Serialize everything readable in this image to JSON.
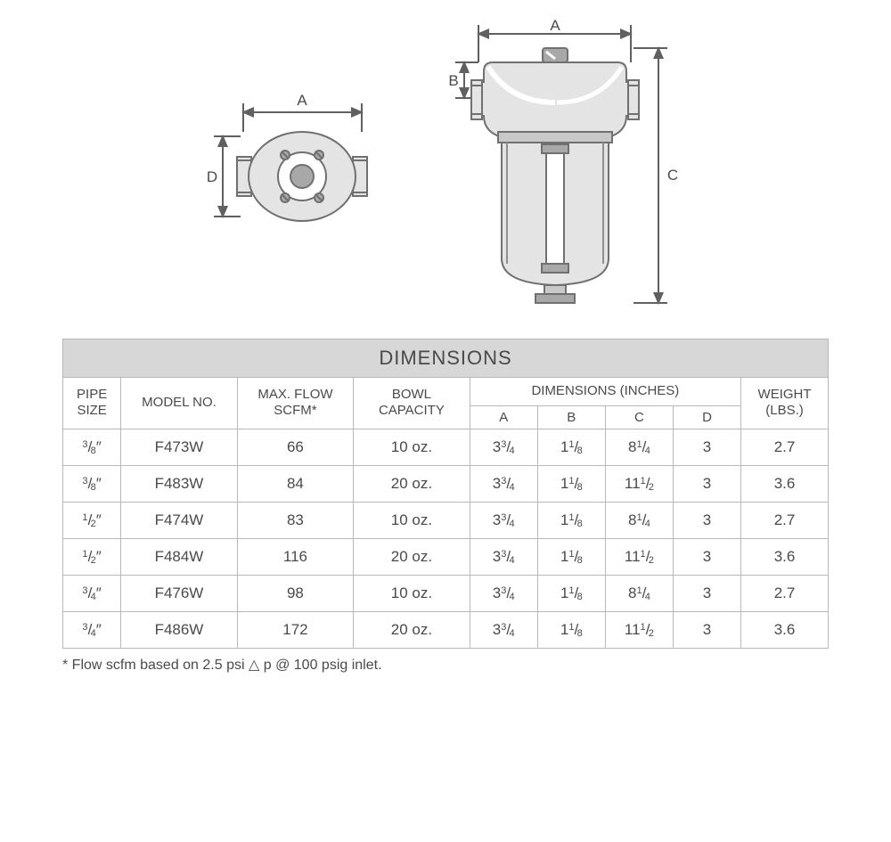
{
  "diagram": {
    "labels": {
      "A": "A",
      "B": "B",
      "C": "C",
      "D": "D"
    },
    "stroke": "#707070",
    "fill_body": "#e4e4e4",
    "fill_dark": "#a8a8a8",
    "fill_white": "#ffffff"
  },
  "table": {
    "title": "DIMENSIONS",
    "headers": {
      "pipe": "PIPE\nSIZE",
      "model": "MODEL NO.",
      "flow": "MAX. FLOW\nSCFM*",
      "bowl": "BOWL\nCAPACITY",
      "dims": "DIMENSIONS (INCHES)",
      "weight": "WEIGHT\n(LBS.)",
      "A": "A",
      "B": "B",
      "C": "C",
      "D": "D"
    },
    "rows": [
      {
        "pipe_num": "3",
        "pipe_den": "8",
        "model": "F473W",
        "flow": "66",
        "bowl": "10 oz.",
        "A_int": "3",
        "A_num": "3",
        "A_den": "4",
        "B_int": "1",
        "B_num": "1",
        "B_den": "8",
        "C_int": "8",
        "C_num": "1",
        "C_den": "4",
        "D": "3",
        "weight": "2.7"
      },
      {
        "pipe_num": "3",
        "pipe_den": "8",
        "model": "F483W",
        "flow": "84",
        "bowl": "20 oz.",
        "A_int": "3",
        "A_num": "3",
        "A_den": "4",
        "B_int": "1",
        "B_num": "1",
        "B_den": "8",
        "C_int": "11",
        "C_num": "1",
        "C_den": "2",
        "D": "3",
        "weight": "3.6"
      },
      {
        "pipe_num": "1",
        "pipe_den": "2",
        "model": "F474W",
        "flow": "83",
        "bowl": "10 oz.",
        "A_int": "3",
        "A_num": "3",
        "A_den": "4",
        "B_int": "1",
        "B_num": "1",
        "B_den": "8",
        "C_int": "8",
        "C_num": "1",
        "C_den": "4",
        "D": "3",
        "weight": "2.7"
      },
      {
        "pipe_num": "1",
        "pipe_den": "2",
        "model": "F484W",
        "flow": "116",
        "bowl": "20 oz.",
        "A_int": "3",
        "A_num": "3",
        "A_den": "4",
        "B_int": "1",
        "B_num": "1",
        "B_den": "8",
        "C_int": "11",
        "C_num": "1",
        "C_den": "2",
        "D": "3",
        "weight": "3.6"
      },
      {
        "pipe_num": "3",
        "pipe_den": "4",
        "model": "F476W",
        "flow": "98",
        "bowl": "10 oz.",
        "A_int": "3",
        "A_num": "3",
        "A_den": "4",
        "B_int": "1",
        "B_num": "1",
        "B_den": "8",
        "C_int": "8",
        "C_num": "1",
        "C_den": "4",
        "D": "3",
        "weight": "2.7"
      },
      {
        "pipe_num": "3",
        "pipe_den": "4",
        "model": "F486W",
        "flow": "172",
        "bowl": "20 oz.",
        "A_int": "3",
        "A_num": "3",
        "A_den": "4",
        "B_int": "1",
        "B_num": "1",
        "B_den": "8",
        "C_int": "11",
        "C_num": "1",
        "C_den": "2",
        "D": "3",
        "weight": "3.6"
      }
    ],
    "footnote_prefix": "* Flow scfm based on 2.5 psi ",
    "footnote_suffix": " p @ 100 psig inlet."
  }
}
